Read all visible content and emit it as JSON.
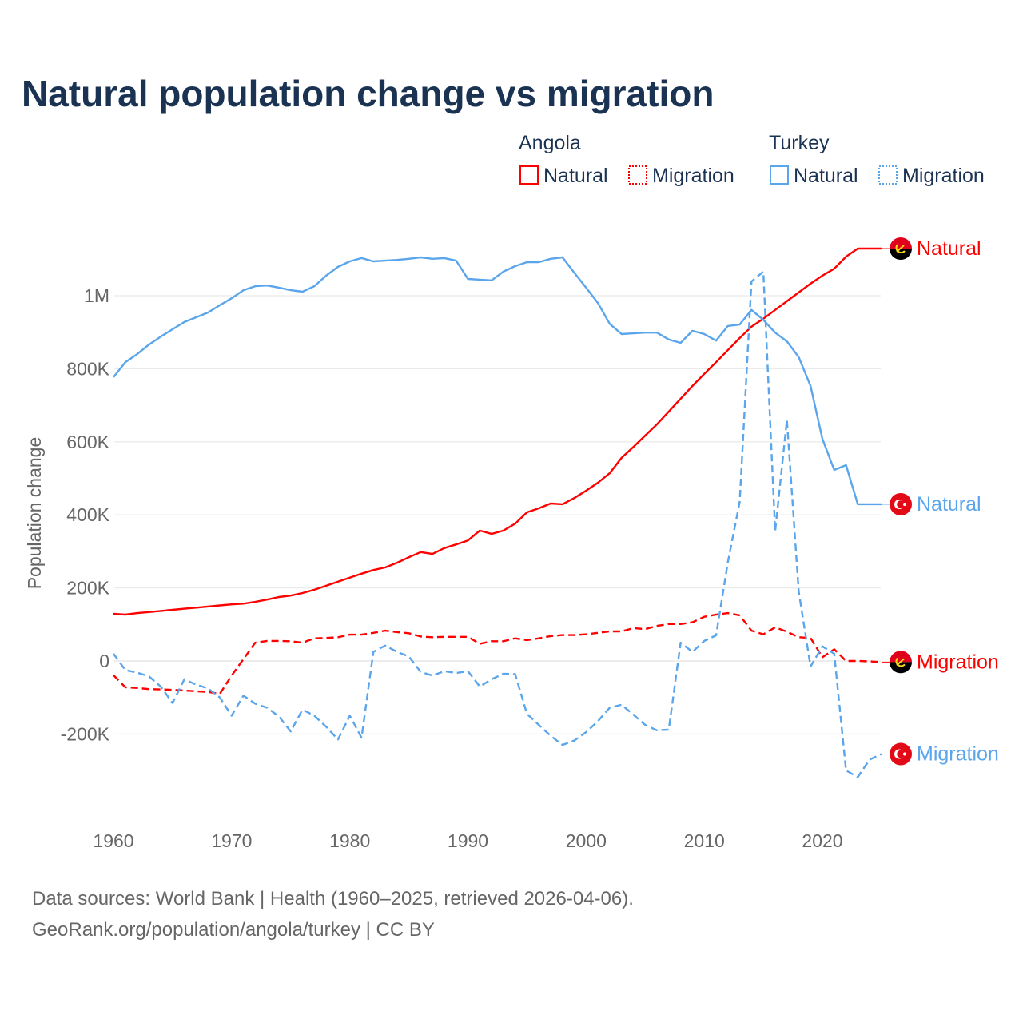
{
  "chart_data": {
    "type": "line",
    "title": "Natural population change vs migration",
    "ylabel": "Population change",
    "xlabel": "",
    "xlim": [
      1960,
      2025
    ],
    "ylim": [
      -400000,
      1200000
    ],
    "x_ticks": [
      1960,
      1970,
      1980,
      1990,
      2000,
      2010,
      2020
    ],
    "x_tick_labels": [
      "1960",
      "1970",
      "1980",
      "1990",
      "2000",
      "2010",
      "2020"
    ],
    "y_ticks": [
      -200000,
      0,
      200000,
      400000,
      600000,
      800000,
      1000000
    ],
    "y_tick_labels": [
      "-200K",
      "0",
      "200K",
      "400K",
      "600K",
      "800K",
      "1M"
    ],
    "grid": true,
    "legend_placement": "top-right",
    "legend": [
      {
        "group": "Angola",
        "items": [
          {
            "label": "Natural",
            "style": "solid",
            "color": "#ff0000"
          },
          {
            "label": "Migration",
            "style": "dotted",
            "color": "#ff0000"
          }
        ]
      },
      {
        "group": "Turkey",
        "items": [
          {
            "label": "Natural",
            "style": "solid",
            "color": "#5aa5eb"
          },
          {
            "label": "Migration",
            "style": "dotted",
            "color": "#5aa5eb"
          }
        ]
      }
    ],
    "x_start": 1960,
    "series": [
      {
        "name": "Angola Natural",
        "country": "Angola",
        "end_label": "Natural",
        "color": "#ff0000",
        "dash": false,
        "flag": "angola",
        "values": [
          129000,
          127000,
          131000,
          134000,
          137000,
          140000,
          143000,
          146000,
          149000,
          152000,
          155000,
          157000,
          162000,
          168000,
          175000,
          179000,
          186000,
          195000,
          206000,
          217000,
          228000,
          239000,
          249000,
          256000,
          269000,
          284000,
          298000,
          293000,
          309000,
          319000,
          330000,
          357000,
          348000,
          357000,
          376000,
          407000,
          418000,
          431000,
          429000,
          446000,
          466000,
          488000,
          514000,
          556000,
          586000,
          617000,
          648000,
          683000,
          718000,
          753000,
          786000,
          818000,
          851000,
          884000,
          915000,
          937000,
          961000,
          985000,
          1009000,
          1033000,
          1055000,
          1074000,
          1107000,
          1129000,
          1129000,
          1129000
        ]
      },
      {
        "name": "Angola Migration",
        "country": "Angola",
        "end_label": "Migration",
        "color": "#ff0000",
        "dash": true,
        "flag": "angola",
        "values": [
          -39000,
          -72000,
          -74000,
          -77000,
          -78000,
          -79000,
          -81000,
          -83000,
          -85000,
          -90000,
          -40000,
          5000,
          50000,
          55000,
          55000,
          54000,
          50000,
          62000,
          63000,
          65000,
          72000,
          72000,
          77000,
          83000,
          79000,
          76000,
          67000,
          65000,
          66000,
          66000,
          66000,
          47000,
          54000,
          54000,
          62000,
          57000,
          62000,
          68000,
          71000,
          71000,
          73000,
          77000,
          81000,
          81000,
          90000,
          87000,
          96000,
          101000,
          101000,
          106000,
          121000,
          127000,
          131000,
          125000,
          83000,
          73000,
          92000,
          80000,
          65000,
          63000,
          10000,
          32000,
          0,
          0,
          -1000,
          -3000
        ]
      },
      {
        "name": "Turkey Natural",
        "country": "Turkey",
        "end_label": "Natural",
        "color": "#5aa5eb",
        "dash": false,
        "flag": "turkey",
        "values": [
          777000,
          818000,
          840000,
          866000,
          888000,
          908000,
          928000,
          941000,
          954000,
          974000,
          993000,
          1015000,
          1026000,
          1028000,
          1022000,
          1015000,
          1011000,
          1026000,
          1055000,
          1079000,
          1094000,
          1103000,
          1094000,
          1096000,
          1098000,
          1101000,
          1105000,
          1101000,
          1103000,
          1096000,
          1046000,
          1044000,
          1042000,
          1066000,
          1081000,
          1092000,
          1092000,
          1101000,
          1105000,
          1063000,
          1022000,
          980000,
          923000,
          895000,
          897000,
          899000,
          899000,
          880000,
          871000,
          904000,
          895000,
          877000,
          917000,
          921000,
          961000,
          934000,
          899000,
          875000,
          832000,
          753000,
          608000,
          523000,
          536000,
          429000,
          429000,
          429000
        ]
      },
      {
        "name": "Turkey Migration",
        "country": "Turkey",
        "end_label": "Migration",
        "color": "#5aa5eb",
        "dash": true,
        "flag": "turkey",
        "values": [
          20000,
          -25000,
          -32000,
          -42000,
          -70000,
          -115000,
          -50000,
          -65000,
          -75000,
          -100000,
          -150000,
          -95000,
          -117000,
          -128000,
          -152000,
          -193000,
          -133000,
          -150000,
          -180000,
          -215000,
          -150000,
          -210000,
          25000,
          42000,
          25000,
          12000,
          -30000,
          -40000,
          -28000,
          -33000,
          -28000,
          -70000,
          -50000,
          -35000,
          -36000,
          -145000,
          -175000,
          -205000,
          -230000,
          -218000,
          -195000,
          -165000,
          -128000,
          -120000,
          -147000,
          -175000,
          -190000,
          -188000,
          50000,
          25000,
          55000,
          70000,
          270000,
          435000,
          1039000,
          1066000,
          355000,
          660000,
          190000,
          -15000,
          40000,
          20000,
          -300000,
          -318000,
          -270000,
          -255000
        ]
      }
    ]
  },
  "source_line1": "Data sources: World Bank | Health (1960–2025, retrieved 2026-04-06).",
  "source_line2": "GeoRank.org/population/angola/turkey | CC BY"
}
